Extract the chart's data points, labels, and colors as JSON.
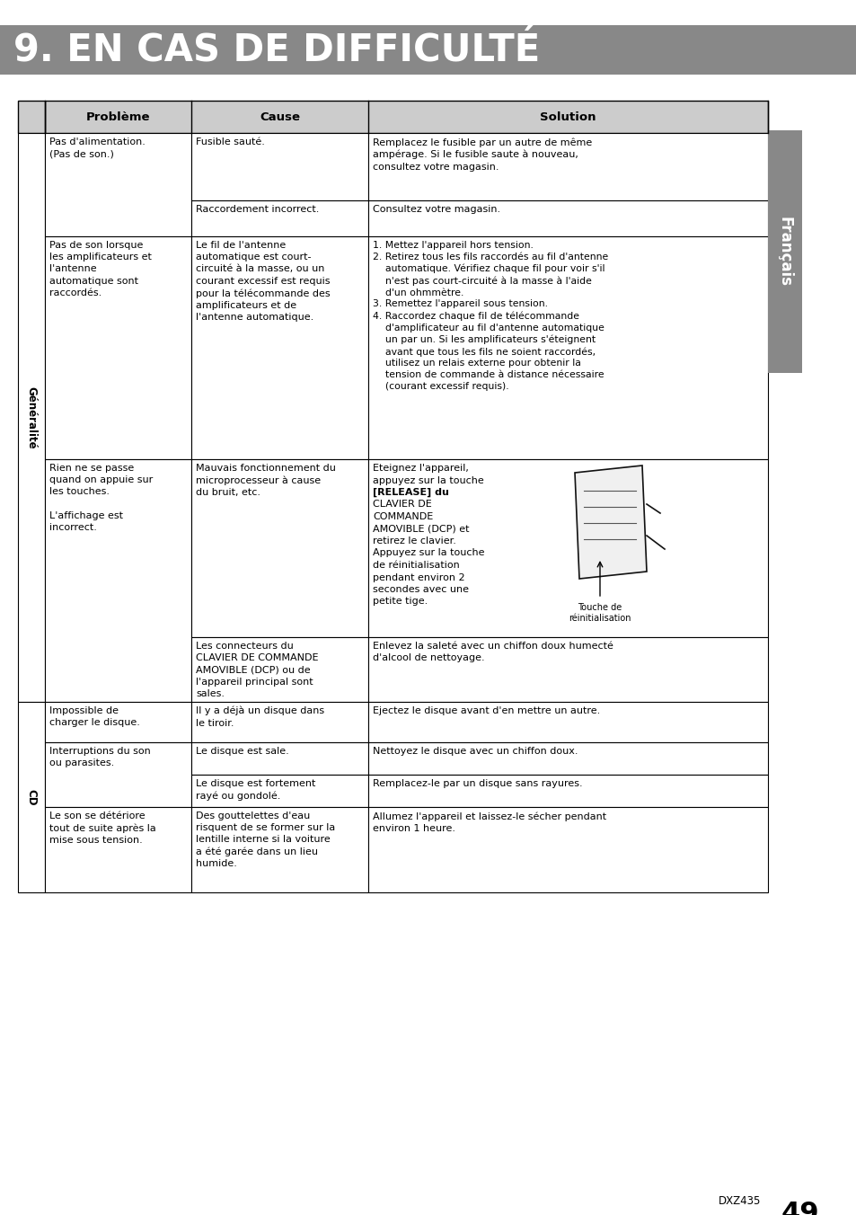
{
  "title": "9. EN CAS DE DIFFICULTÉ",
  "title_bg": "#888888",
  "title_fg": "#ffffff",
  "page_bg": "#ffffff",
  "table_border": "#000000",
  "header_bg": "#cccccc",
  "header_fg": "#000000",
  "col_headers": [
    "Problème",
    "Cause",
    "Solution"
  ],
  "footer_text": "DXZ435",
  "footer_page": "49",
  "side_label_bg": "#888888",
  "side_label_fg": "#ffffff",
  "side_label_text": "Français"
}
